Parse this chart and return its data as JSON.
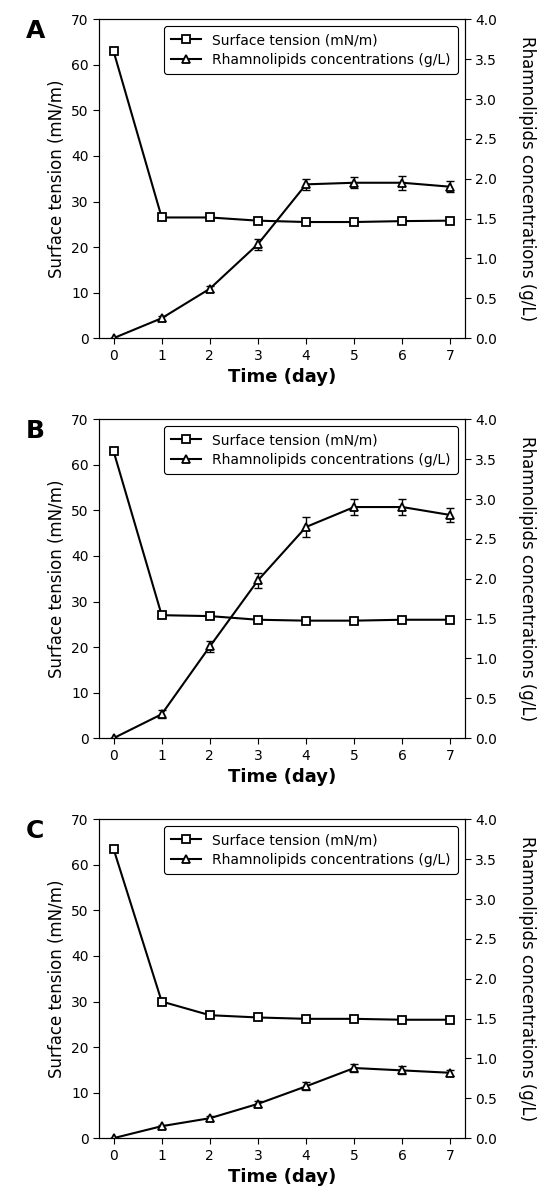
{
  "panels": [
    {
      "label": "A",
      "days": [
        0,
        1,
        2,
        3,
        4,
        5,
        6,
        7
      ],
      "surface_tension": [
        63.0,
        26.5,
        26.5,
        25.8,
        25.5,
        25.5,
        25.7,
        25.8
      ],
      "surface_tension_err": [
        0.0,
        0.6,
        0.5,
        0.3,
        0.3,
        0.3,
        0.5,
        0.3
      ],
      "rhamnolipids": [
        0.0,
        0.25,
        0.62,
        1.18,
        1.93,
        1.95,
        1.95,
        1.9
      ],
      "rhamnolipids_err": [
        0.0,
        0.03,
        0.04,
        0.07,
        0.07,
        0.07,
        0.09,
        0.07
      ]
    },
    {
      "label": "B",
      "days": [
        0,
        1,
        2,
        3,
        4,
        5,
        6,
        7
      ],
      "surface_tension": [
        63.0,
        27.0,
        26.8,
        26.0,
        25.8,
        25.8,
        26.0,
        26.0
      ],
      "surface_tension_err": [
        0.0,
        0.5,
        0.4,
        0.3,
        0.3,
        0.3,
        0.4,
        0.3
      ],
      "rhamnolipids": [
        0.0,
        0.3,
        1.15,
        1.98,
        2.65,
        2.9,
        2.9,
        2.8
      ],
      "rhamnolipids_err": [
        0.0,
        0.05,
        0.07,
        0.09,
        0.12,
        0.1,
        0.1,
        0.09
      ]
    },
    {
      "label": "C",
      "days": [
        0,
        1,
        2,
        3,
        4,
        5,
        6,
        7
      ],
      "surface_tension": [
        63.5,
        30.0,
        27.0,
        26.5,
        26.2,
        26.2,
        26.0,
        26.0
      ],
      "surface_tension_err": [
        0.0,
        0.5,
        0.4,
        0.3,
        0.3,
        0.3,
        0.3,
        0.3
      ],
      "rhamnolipids": [
        0.0,
        0.15,
        0.25,
        0.43,
        0.65,
        0.88,
        0.85,
        0.82
      ],
      "rhamnolipids_err": [
        0.0,
        0.02,
        0.03,
        0.04,
        0.05,
        0.05,
        0.05,
        0.04
      ]
    }
  ],
  "ylabel_left": "Surface tension (mN/m)",
  "ylabel_right": "Rhamnolipids concentrations (g/L)",
  "xlabel": "Time (day)",
  "ylim_left": [
    0,
    70
  ],
  "ylim_right": [
    0,
    4
  ],
  "yticks_left": [
    0,
    10,
    20,
    30,
    40,
    50,
    60,
    70
  ],
  "yticks_right": [
    0,
    0.5,
    1.0,
    1.5,
    2.0,
    2.5,
    3.0,
    3.5,
    4.0
  ],
  "xticks": [
    0,
    1,
    2,
    3,
    4,
    5,
    6,
    7
  ],
  "legend_labels": [
    "Surface tension (mN/m)",
    "Rhamnolipids concentrations (g/L)"
  ],
  "line_color": "black",
  "marker_st": "s",
  "marker_rl": "^",
  "label_fontsize": 12,
  "tick_fontsize": 10,
  "legend_fontsize": 10,
  "panel_label_fontsize": 18,
  "xlabel_fontsize": 13
}
